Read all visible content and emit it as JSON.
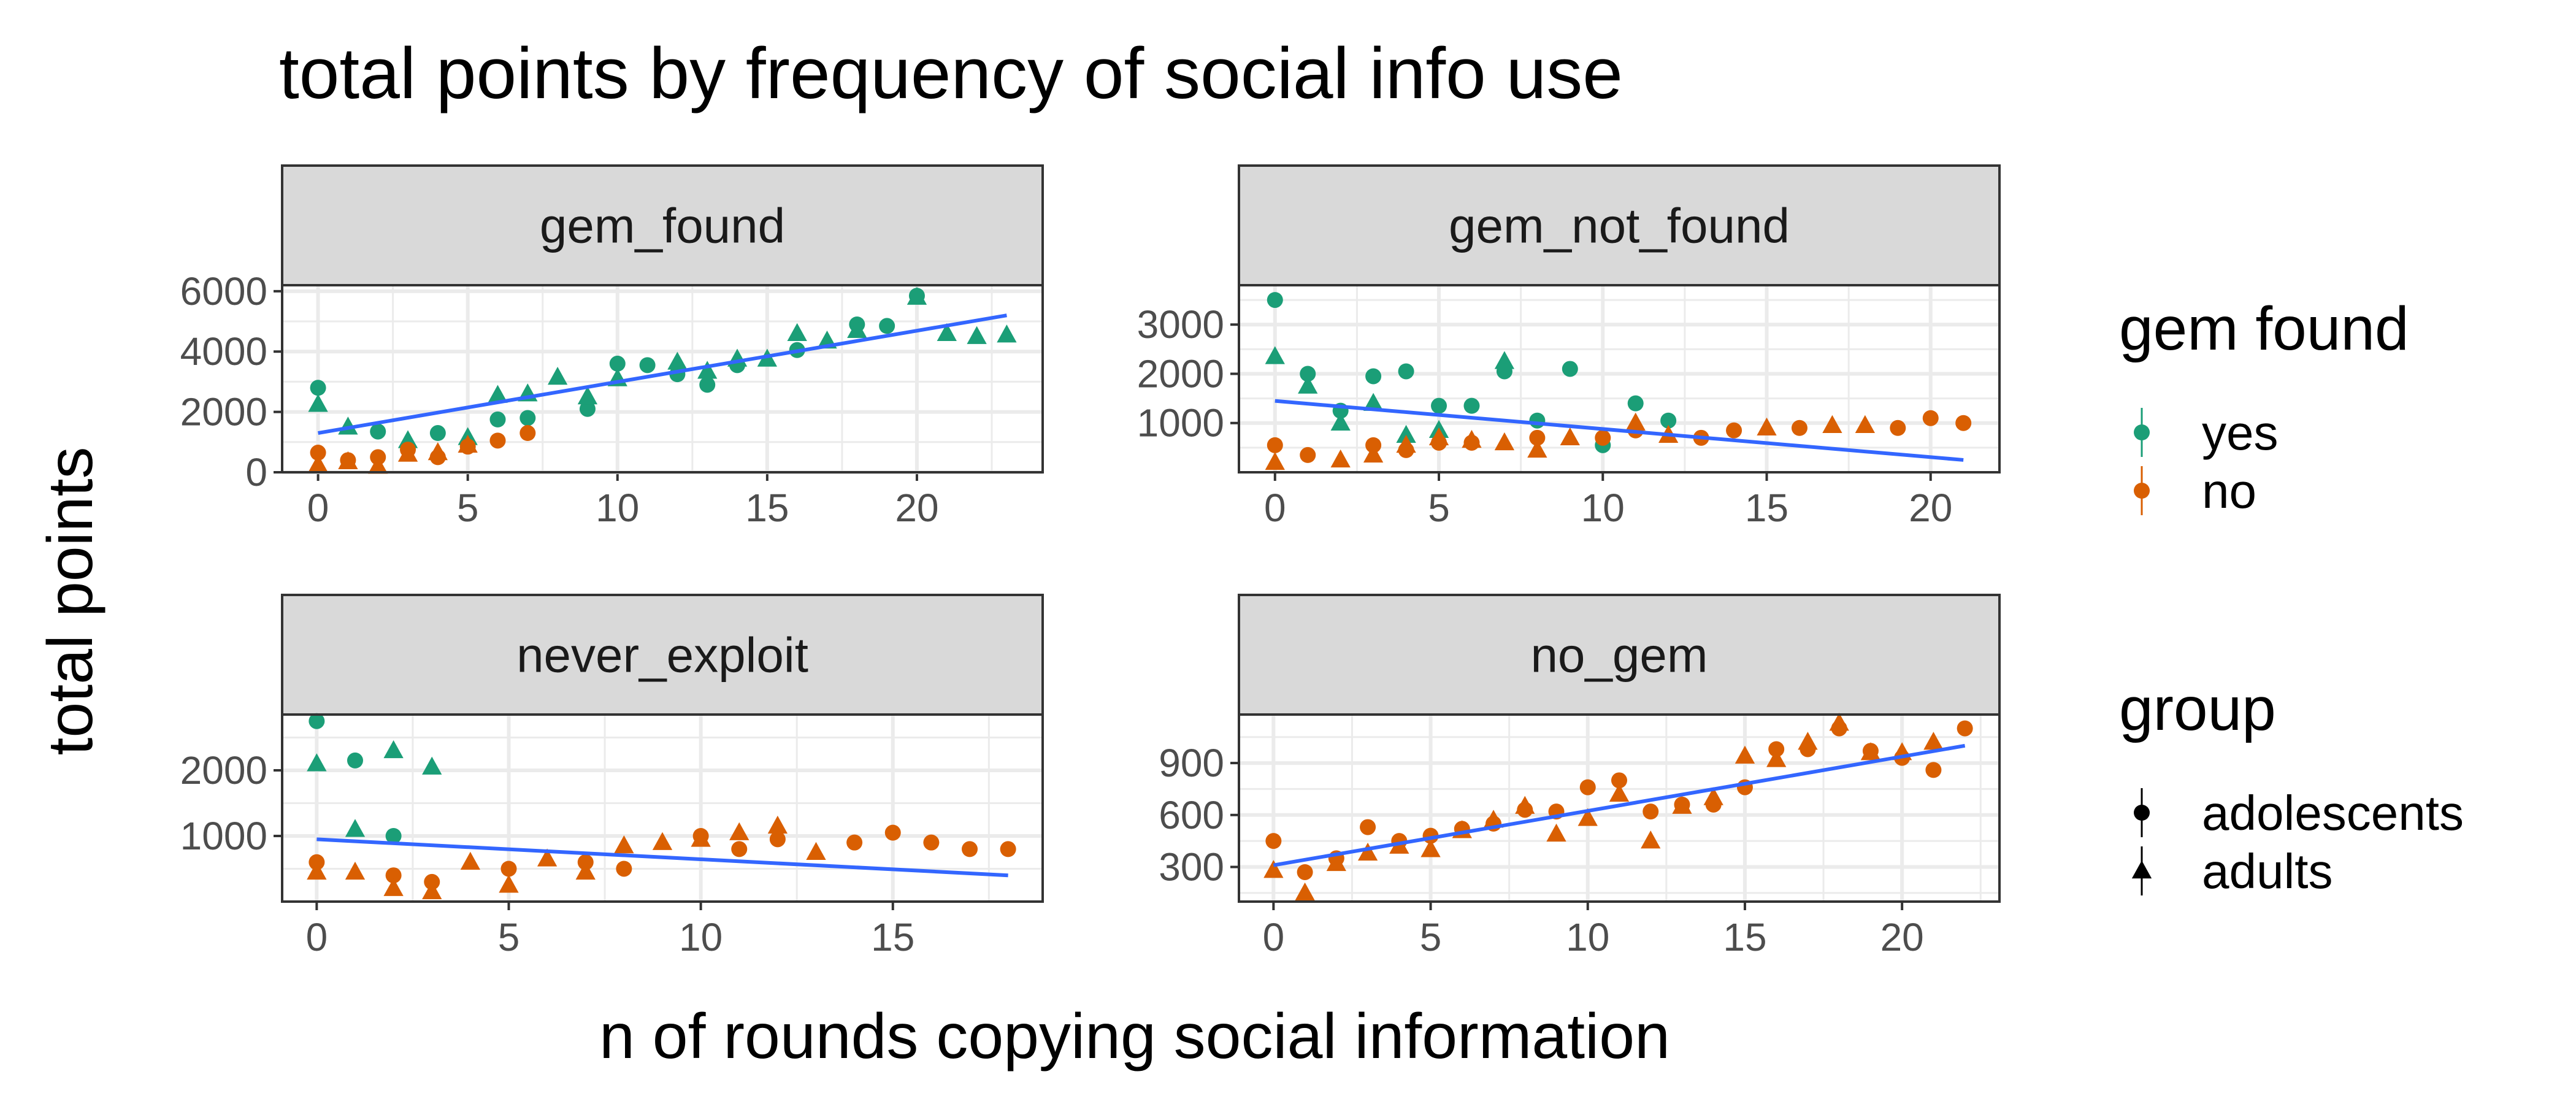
{
  "title": "total points by frequency of social info use",
  "xlabel": "n of rounds copying social information",
  "ylabel": "total points",
  "colors": {
    "yes": "#1B9E77",
    "no": "#D95F02",
    "trend": "#3366FF",
    "grid": "#EBEBEB",
    "strip_bg": "#D9D9D9",
    "panel_border": "#333333"
  },
  "legend": {
    "color_title": "gem found",
    "color_items": [
      {
        "key": "yes",
        "label": "yes"
      },
      {
        "key": "no",
        "label": "no"
      }
    ],
    "shape_title": "group",
    "shape_items": [
      {
        "key": "adolescents",
        "label": "adolescents",
        "shape": "circle"
      },
      {
        "key": "adults",
        "label": "adults",
        "shape": "triangle"
      }
    ]
  },
  "chart_data": [
    {
      "type": "scatter",
      "facet": "gem_found",
      "xlim": [
        -1.2,
        24.2
      ],
      "ylim": [
        0,
        6200
      ],
      "xticks": [
        0,
        5,
        10,
        15,
        20
      ],
      "yticks": [
        0,
        2000,
        4000,
        6000
      ],
      "trend": [
        [
          0,
          1300
        ],
        [
          23,
          5200
        ]
      ],
      "points": [
        [
          0,
          2800,
          "yes",
          "adolescents"
        ],
        [
          0,
          2250,
          "yes",
          "adults"
        ],
        [
          1,
          1500,
          "yes",
          "adults"
        ],
        [
          2,
          1350,
          "yes",
          "adolescents"
        ],
        [
          3,
          1050,
          "yes",
          "adults"
        ],
        [
          4,
          1300,
          "yes",
          "adolescents"
        ],
        [
          5,
          1150,
          "yes",
          "adults"
        ],
        [
          6,
          1750,
          "yes",
          "adolescents"
        ],
        [
          6,
          2550,
          "yes",
          "adults"
        ],
        [
          7,
          1800,
          "yes",
          "adolescents"
        ],
        [
          7,
          2600,
          "yes",
          "adults"
        ],
        [
          8,
          3150,
          "yes",
          "adults"
        ],
        [
          9,
          2100,
          "yes",
          "adolescents"
        ],
        [
          9,
          2500,
          "yes",
          "adults"
        ],
        [
          10,
          3600,
          "yes",
          "adolescents"
        ],
        [
          10,
          3100,
          "yes",
          "adults"
        ],
        [
          11,
          3550,
          "yes",
          "adolescents"
        ],
        [
          12,
          3650,
          "yes",
          "adults"
        ],
        [
          12,
          3250,
          "yes",
          "adolescents"
        ],
        [
          13,
          3350,
          "yes",
          "adults"
        ],
        [
          13,
          2900,
          "yes",
          "adolescents"
        ],
        [
          14,
          3750,
          "yes",
          "adults"
        ],
        [
          14,
          3550,
          "yes",
          "adolescents"
        ],
        [
          15,
          3750,
          "yes",
          "adults"
        ],
        [
          16,
          4600,
          "yes",
          "adults"
        ],
        [
          16,
          4050,
          "yes",
          "adolescents"
        ],
        [
          17,
          4350,
          "yes",
          "adults"
        ],
        [
          18,
          4900,
          "yes",
          "adolescents"
        ],
        [
          18,
          4700,
          "yes",
          "adults"
        ],
        [
          19,
          4850,
          "yes",
          "adolescents"
        ],
        [
          20,
          5850,
          "yes",
          "adolescents"
        ],
        [
          20,
          5800,
          "yes",
          "adults"
        ],
        [
          21,
          4600,
          "yes",
          "adults"
        ],
        [
          22,
          4500,
          "yes",
          "adults"
        ],
        [
          23,
          4550,
          "yes",
          "adults"
        ],
        [
          0,
          650,
          "no",
          "adolescents"
        ],
        [
          0,
          250,
          "no",
          "adults"
        ],
        [
          1,
          400,
          "no",
          "adolescents"
        ],
        [
          1,
          350,
          "no",
          "adults"
        ],
        [
          2,
          500,
          "no",
          "adolescents"
        ],
        [
          2,
          200,
          "no",
          "adults"
        ],
        [
          3,
          750,
          "no",
          "adolescents"
        ],
        [
          3,
          600,
          "no",
          "adults"
        ],
        [
          4,
          500,
          "no",
          "adolescents"
        ],
        [
          4,
          650,
          "no",
          "adults"
        ],
        [
          5,
          850,
          "no",
          "adolescents"
        ],
        [
          5,
          900,
          "no",
          "adults"
        ],
        [
          6,
          1050,
          "no",
          "adolescents"
        ],
        [
          7,
          1300,
          "no",
          "adolescents"
        ]
      ]
    },
    {
      "type": "scatter",
      "facet": "gem_not_found",
      "xlim": [
        -1.1,
        22.1
      ],
      "ylim": [
        0,
        3800
      ],
      "xticks": [
        0,
        5,
        10,
        15,
        20
      ],
      "yticks": [
        1000,
        2000,
        3000
      ],
      "trend": [
        [
          0,
          1450
        ],
        [
          21,
          250
        ]
      ],
      "points": [
        [
          0,
          3500,
          "yes",
          "adolescents"
        ],
        [
          0,
          2350,
          "yes",
          "adults"
        ],
        [
          1,
          2000,
          "yes",
          "adolescents"
        ],
        [
          1,
          1750,
          "yes",
          "adults"
        ],
        [
          2,
          1250,
          "yes",
          "adolescents"
        ],
        [
          2,
          1000,
          "yes",
          "adults"
        ],
        [
          3,
          1950,
          "yes",
          "adolescents"
        ],
        [
          3,
          1400,
          "yes",
          "adults"
        ],
        [
          4,
          2050,
          "yes",
          "adolescents"
        ],
        [
          4,
          750,
          "yes",
          "adults"
        ],
        [
          5,
          1350,
          "yes",
          "adolescents"
        ],
        [
          5,
          850,
          "yes",
          "adults"
        ],
        [
          6,
          1350,
          "yes",
          "adolescents"
        ],
        [
          7,
          2250,
          "yes",
          "adults"
        ],
        [
          7,
          2050,
          "yes",
          "adolescents"
        ],
        [
          8,
          1050,
          "yes",
          "adolescents"
        ],
        [
          9,
          2100,
          "yes",
          "adolescents"
        ],
        [
          10,
          550,
          "yes",
          "adolescents"
        ],
        [
          11,
          1400,
          "yes",
          "adolescents"
        ],
        [
          12,
          1050,
          "yes",
          "adolescents"
        ],
        [
          0,
          550,
          "no",
          "adolescents"
        ],
        [
          0,
          200,
          "no",
          "adults"
        ],
        [
          1,
          350,
          "no",
          "adolescents"
        ],
        [
          2,
          250,
          "no",
          "adults"
        ],
        [
          3,
          550,
          "no",
          "adolescents"
        ],
        [
          3,
          350,
          "no",
          "adults"
        ],
        [
          4,
          550,
          "no",
          "adults"
        ],
        [
          4,
          450,
          "no",
          "adolescents"
        ],
        [
          5,
          600,
          "no",
          "adolescents"
        ],
        [
          5,
          700,
          "no",
          "adults"
        ],
        [
          6,
          650,
          "no",
          "adults"
        ],
        [
          6,
          600,
          "no",
          "adolescents"
        ],
        [
          7,
          600,
          "no",
          "adults"
        ],
        [
          8,
          700,
          "no",
          "adolescents"
        ],
        [
          8,
          450,
          "no",
          "adults"
        ],
        [
          9,
          700,
          "no",
          "adults"
        ],
        [
          10,
          700,
          "no",
          "adolescents"
        ],
        [
          11,
          850,
          "no",
          "adolescents"
        ],
        [
          11,
          1000,
          "no",
          "adults"
        ],
        [
          12,
          750,
          "no",
          "adults"
        ],
        [
          13,
          700,
          "no",
          "adolescents"
        ],
        [
          14,
          850,
          "no",
          "adolescents"
        ],
        [
          15,
          900,
          "no",
          "adults"
        ],
        [
          16,
          900,
          "no",
          "adolescents"
        ],
        [
          17,
          950,
          "no",
          "adults"
        ],
        [
          18,
          950,
          "no",
          "adults"
        ],
        [
          19,
          900,
          "no",
          "adolescents"
        ],
        [
          20,
          1100,
          "no",
          "adolescents"
        ],
        [
          21,
          1000,
          "no",
          "adolescents"
        ]
      ]
    },
    {
      "type": "scatter",
      "facet": "never_exploit",
      "xlim": [
        -0.9,
        18.9
      ],
      "ylim": [
        0,
        2850
      ],
      "xticks": [
        0,
        5,
        10,
        15
      ],
      "yticks": [
        1000,
        2000
      ],
      "trend": [
        [
          0,
          950
        ],
        [
          18,
          400
        ]
      ],
      "points": [
        [
          0,
          2750,
          "yes",
          "adolescents"
        ],
        [
          0,
          2100,
          "yes",
          "adults"
        ],
        [
          1,
          2150,
          "yes",
          "adolescents"
        ],
        [
          1,
          1100,
          "yes",
          "adults"
        ],
        [
          2,
          2300,
          "yes",
          "adults"
        ],
        [
          2,
          1000,
          "yes",
          "adolescents"
        ],
        [
          3,
          2050,
          "yes",
          "adults"
        ],
        [
          0,
          600,
          "no",
          "adolescents"
        ],
        [
          0,
          450,
          "no",
          "adults"
        ],
        [
          1,
          450,
          "no",
          "adults"
        ],
        [
          2,
          400,
          "no",
          "adolescents"
        ],
        [
          2,
          200,
          "no",
          "adults"
        ],
        [
          3,
          300,
          "no",
          "adolescents"
        ],
        [
          3,
          150,
          "no",
          "adults"
        ],
        [
          4,
          600,
          "no",
          "adults"
        ],
        [
          5,
          500,
          "no",
          "adolescents"
        ],
        [
          5,
          250,
          "no",
          "adults"
        ],
        [
          6,
          650,
          "no",
          "adults"
        ],
        [
          7,
          600,
          "no",
          "adolescents"
        ],
        [
          7,
          450,
          "no",
          "adults"
        ],
        [
          8,
          850,
          "no",
          "adults"
        ],
        [
          8,
          500,
          "no",
          "adolescents"
        ],
        [
          9,
          900,
          "no",
          "adults"
        ],
        [
          10,
          1000,
          "no",
          "adolescents"
        ],
        [
          10,
          950,
          "no",
          "adults"
        ],
        [
          11,
          1050,
          "no",
          "adults"
        ],
        [
          11,
          800,
          "no",
          "adolescents"
        ],
        [
          12,
          1150,
          "no",
          "adults"
        ],
        [
          12,
          950,
          "no",
          "adolescents"
        ],
        [
          13,
          750,
          "no",
          "adults"
        ],
        [
          14,
          900,
          "no",
          "adolescents"
        ],
        [
          15,
          1050,
          "no",
          "adolescents"
        ],
        [
          16,
          900,
          "no",
          "adolescents"
        ],
        [
          17,
          800,
          "no",
          "adolescents"
        ],
        [
          18,
          800,
          "no",
          "adolescents"
        ]
      ]
    },
    {
      "type": "scatter",
      "facet": "no_gem",
      "xlim": [
        -1.1,
        23.1
      ],
      "ylim": [
        100,
        1180
      ],
      "xticks": [
        0,
        5,
        10,
        15,
        20
      ],
      "yticks": [
        300,
        600,
        900
      ],
      "trend": [
        [
          0,
          310
        ],
        [
          22,
          1000
        ]
      ],
      "points": [
        [
          0,
          450,
          "no",
          "adolescents"
        ],
        [
          0,
          280,
          "no",
          "adults"
        ],
        [
          1,
          270,
          "no",
          "adolescents"
        ],
        [
          1,
          150,
          "no",
          "adults"
        ],
        [
          2,
          350,
          "no",
          "adolescents"
        ],
        [
          2,
          320,
          "no",
          "adults"
        ],
        [
          3,
          530,
          "no",
          "adolescents"
        ],
        [
          3,
          380,
          "no",
          "adults"
        ],
        [
          4,
          450,
          "no",
          "adolescents"
        ],
        [
          4,
          420,
          "no",
          "adults"
        ],
        [
          5,
          480,
          "no",
          "adolescents"
        ],
        [
          5,
          400,
          "no",
          "adults"
        ],
        [
          6,
          520,
          "no",
          "adolescents"
        ],
        [
          6,
          510,
          "no",
          "adults"
        ],
        [
          7,
          550,
          "no",
          "adolescents"
        ],
        [
          7,
          570,
          "no",
          "adults"
        ],
        [
          8,
          630,
          "no",
          "adolescents"
        ],
        [
          8,
          650,
          "no",
          "adults"
        ],
        [
          9,
          620,
          "no",
          "adolescents"
        ],
        [
          9,
          490,
          "no",
          "adults"
        ],
        [
          10,
          760,
          "no",
          "adolescents"
        ],
        [
          10,
          580,
          "no",
          "adults"
        ],
        [
          11,
          800,
          "no",
          "adolescents"
        ],
        [
          11,
          720,
          "no",
          "adults"
        ],
        [
          12,
          620,
          "no",
          "adolescents"
        ],
        [
          12,
          450,
          "no",
          "adults"
        ],
        [
          13,
          660,
          "no",
          "adolescents"
        ],
        [
          13,
          650,
          "no",
          "adults"
        ],
        [
          14,
          700,
          "no",
          "adults"
        ],
        [
          14,
          660,
          "no",
          "adolescents"
        ],
        [
          15,
          760,
          "no",
          "adolescents"
        ],
        [
          15,
          940,
          "no",
          "adults"
        ],
        [
          16,
          980,
          "no",
          "adolescents"
        ],
        [
          16,
          920,
          "no",
          "adults"
        ],
        [
          17,
          1020,
          "no",
          "adults"
        ],
        [
          17,
          980,
          "no",
          "adolescents"
        ],
        [
          18,
          1130,
          "no",
          "adults"
        ],
        [
          18,
          1100,
          "no",
          "adolescents"
        ],
        [
          19,
          970,
          "no",
          "adolescents"
        ],
        [
          19,
          960,
          "no",
          "adults"
        ],
        [
          20,
          930,
          "no",
          "adolescents"
        ],
        [
          20,
          960,
          "no",
          "adults"
        ],
        [
          21,
          860,
          "no",
          "adolescents"
        ],
        [
          21,
          1020,
          "no",
          "adults"
        ],
        [
          22,
          1100,
          "no",
          "adolescents"
        ]
      ]
    }
  ]
}
